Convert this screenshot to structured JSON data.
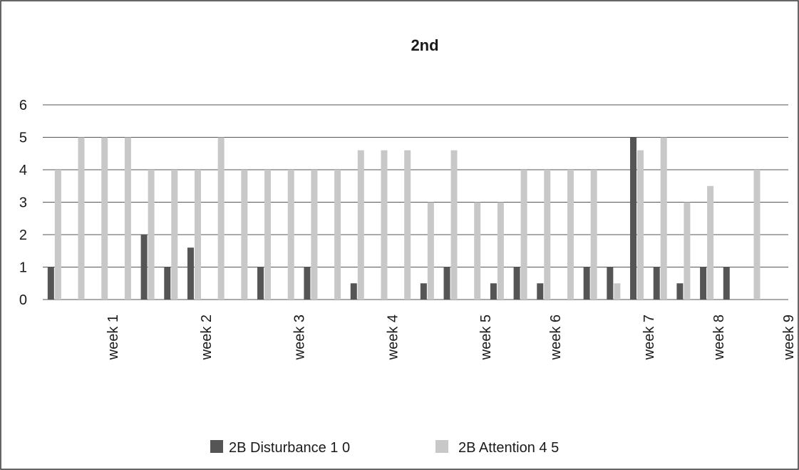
{
  "chart_data": {
    "type": "bar",
    "title": "2nd",
    "xlabel": "",
    "ylabel": "",
    "ylim": [
      0,
      6
    ],
    "yticks": [
      0,
      1,
      2,
      3,
      4,
      5,
      6
    ],
    "grid": true,
    "legend_position": "bottom",
    "colors": {
      "2B Disturbance 1 0": "#555555",
      "2B Attention 4 5": "#c8c8c8"
    },
    "categories": [
      "",
      "",
      "",
      "",
      "",
      "",
      "",
      "",
      "",
      "",
      "",
      "",
      "",
      "",
      "",
      "",
      "",
      "",
      "",
      "",
      "",
      "",
      "",
      "",
      "",
      "",
      "",
      "",
      "",
      "",
      "",
      ""
    ],
    "week_labels": [
      {
        "label": "week 1",
        "after_category_index": 2
      },
      {
        "label": "week 2",
        "after_category_index": 6
      },
      {
        "label": "week 3",
        "after_category_index": 10
      },
      {
        "label": "week 4",
        "after_category_index": 14
      },
      {
        "label": "week 5",
        "after_category_index": 18
      },
      {
        "label": "week 6",
        "after_category_index": 21
      },
      {
        "label": "week 7",
        "after_category_index": 25
      },
      {
        "label": "week 8",
        "after_category_index": 28
      },
      {
        "label": "week 9",
        "after_category_index": 31
      }
    ],
    "series": [
      {
        "name": "2B Disturbance 1 0",
        "values": [
          1,
          0,
          0,
          0,
          2,
          1,
          1.6,
          0,
          0,
          1,
          0,
          1,
          0,
          0.5,
          0,
          0,
          0.5,
          1,
          0,
          0.5,
          1,
          0.5,
          0,
          1,
          1,
          5,
          1,
          0.5,
          1,
          1,
          0,
          0
        ]
      },
      {
        "name": "2B Attention 4 5",
        "values": [
          4,
          5,
          5,
          5,
          4,
          4,
          4,
          5,
          4,
          4,
          4,
          4,
          4,
          4.6,
          4.6,
          4.6,
          3,
          4.6,
          3,
          3,
          4,
          4,
          4,
          4,
          0.5,
          4.6,
          5,
          3,
          3.5,
          0,
          4,
          0
        ]
      }
    ]
  }
}
